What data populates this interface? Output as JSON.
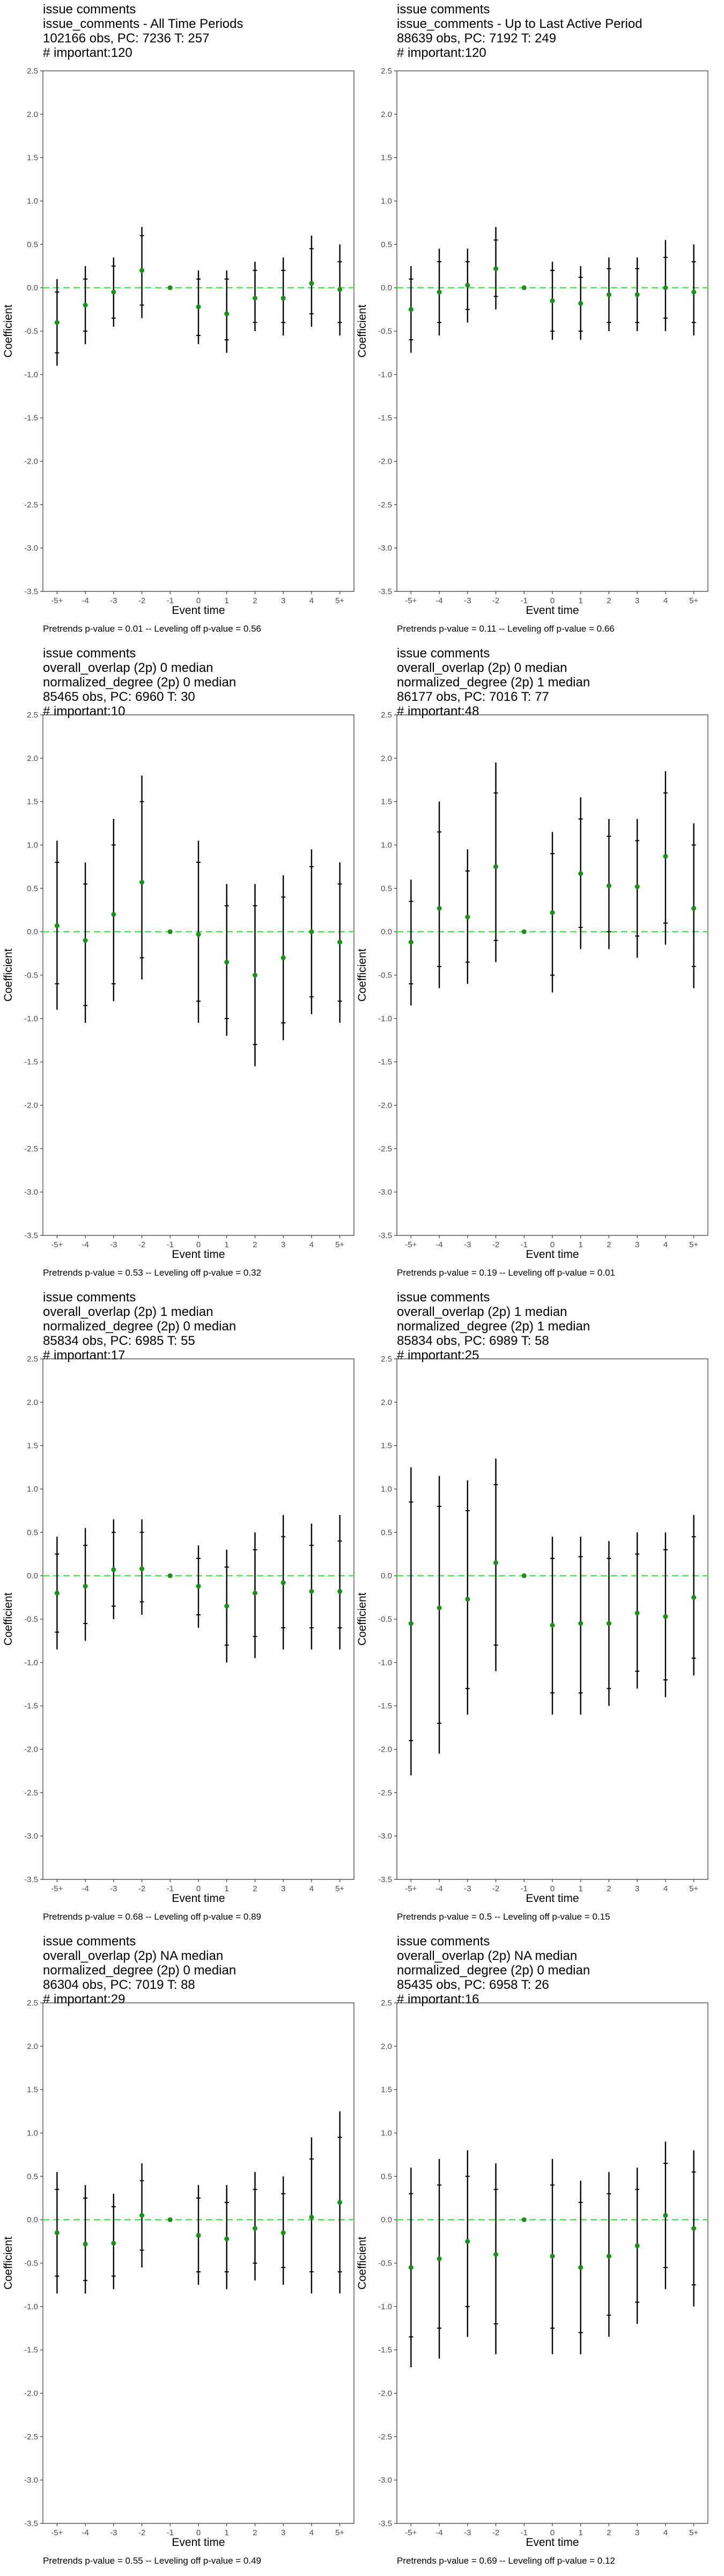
{
  "chart_data": [
    {
      "type": "scatter",
      "title_lines": [
        "issue comments",
        "issue_comments - All Time Periods",
        "102166 obs, PC: 7236 T: 257",
        "# important:120"
      ],
      "xlabel": "Event time",
      "ylabel": "Coefficient",
      "categories": [
        "-5+",
        "-4",
        "-3",
        "-2",
        "-1",
        "0",
        "1",
        "2",
        "3",
        "4",
        "5+"
      ],
      "ylim": [
        -3.5,
        2.5
      ],
      "yticks": [
        "2.5",
        "2.0",
        "1.5",
        "1.0",
        "0.5",
        "0.0",
        "-0.5",
        "-1.0",
        "-1.5",
        "-2.0",
        "-2.5",
        "-3.0",
        "-3.5"
      ],
      "estimate": [
        -0.4,
        -0.2,
        -0.05,
        0.2,
        0.0,
        -0.22,
        -0.3,
        -0.12,
        -0.12,
        0.05,
        -0.02
      ],
      "ci_inner": [
        [
          -0.75,
          -0.05
        ],
        [
          -0.5,
          0.1
        ],
        [
          -0.35,
          0.25
        ],
        [
          -0.2,
          0.6
        ],
        [
          0.0,
          0.0
        ],
        [
          -0.55,
          0.1
        ],
        [
          -0.6,
          0.1
        ],
        [
          -0.4,
          0.2
        ],
        [
          -0.4,
          0.2
        ],
        [
          -0.3,
          0.45
        ],
        [
          -0.4,
          0.3
        ]
      ],
      "ci_outer": [
        [
          -0.9,
          0.1
        ],
        [
          -0.65,
          0.25
        ],
        [
          -0.45,
          0.35
        ],
        [
          -0.35,
          0.7
        ],
        [
          0.0,
          0.0
        ],
        [
          -0.65,
          0.2
        ],
        [
          -0.75,
          0.2
        ],
        [
          -0.5,
          0.3
        ],
        [
          -0.55,
          0.35
        ],
        [
          -0.45,
          0.6
        ],
        [
          -0.55,
          0.5
        ]
      ],
      "reference_line": 0,
      "grid": false,
      "footnote": "Pretrends p-value = 0.01 -- Leveling off p-value = 0.56"
    },
    {
      "type": "scatter",
      "title_lines": [
        "issue comments",
        "issue_comments - Up to Last Active Period",
        "88639 obs, PC: 7192 T: 249",
        "# important:120"
      ],
      "xlabel": "Event time",
      "ylabel": "Coefficient",
      "categories": [
        "-5+",
        "-4",
        "-3",
        "-2",
        "-1",
        "0",
        "1",
        "2",
        "3",
        "4",
        "5+"
      ],
      "ylim": [
        -3.5,
        2.5
      ],
      "yticks": [
        "2.5",
        "2.0",
        "1.5",
        "1.0",
        "0.5",
        "0.0",
        "-0.5",
        "-1.0",
        "-1.5",
        "-2.0",
        "-2.5",
        "-3.0",
        "-3.5"
      ],
      "estimate": [
        -0.25,
        -0.05,
        0.03,
        0.22,
        0.0,
        -0.15,
        -0.18,
        -0.08,
        -0.08,
        0.0,
        -0.05
      ],
      "ci_inner": [
        [
          -0.6,
          0.1
        ],
        [
          -0.4,
          0.3
        ],
        [
          -0.25,
          0.3
        ],
        [
          -0.1,
          0.55
        ],
        [
          0.0,
          0.0
        ],
        [
          -0.5,
          0.2
        ],
        [
          -0.5,
          0.12
        ],
        [
          -0.4,
          0.22
        ],
        [
          -0.4,
          0.22
        ],
        [
          -0.35,
          0.35
        ],
        [
          -0.4,
          0.3
        ]
      ],
      "ci_outer": [
        [
          -0.75,
          0.25
        ],
        [
          -0.55,
          0.45
        ],
        [
          -0.4,
          0.45
        ],
        [
          -0.25,
          0.7
        ],
        [
          0.0,
          0.0
        ],
        [
          -0.6,
          0.3
        ],
        [
          -0.6,
          0.25
        ],
        [
          -0.5,
          0.35
        ],
        [
          -0.5,
          0.35
        ],
        [
          -0.5,
          0.55
        ],
        [
          -0.55,
          0.5
        ]
      ],
      "reference_line": 0,
      "grid": false,
      "footnote": "Pretrends p-value = 0.11 -- Leveling off p-value = 0.66"
    },
    {
      "type": "scatter",
      "title_lines": [
        "issue comments",
        "overall_overlap (2p) 0 median",
        "normalized_degree (2p) 0 median",
        "85465 obs, PC: 6960 T: 30",
        "# important:10"
      ],
      "xlabel": "Event time",
      "ylabel": "Coefficient",
      "categories": [
        "-5+",
        "-4",
        "-3",
        "-2",
        "-1",
        "0",
        "1",
        "2",
        "3",
        "4",
        "5+"
      ],
      "ylim": [
        -3.5,
        2.5
      ],
      "yticks": [
        "2.5",
        "2.0",
        "1.5",
        "1.0",
        "0.5",
        "0.0",
        "-0.5",
        "-1.0",
        "-1.5",
        "-2.0",
        "-2.5",
        "-3.0",
        "-3.5"
      ],
      "estimate": [
        0.07,
        -0.1,
        0.2,
        0.57,
        0.0,
        -0.03,
        -0.35,
        -0.5,
        -0.3,
        0.0,
        -0.12
      ],
      "ci_inner": [
        [
          -0.6,
          0.8
        ],
        [
          -0.85,
          0.55
        ],
        [
          -0.6,
          1.0
        ],
        [
          -0.3,
          1.5
        ],
        [
          0.0,
          0.0
        ],
        [
          -0.8,
          0.8
        ],
        [
          -1.0,
          0.3
        ],
        [
          -1.3,
          0.3
        ],
        [
          -1.05,
          0.4
        ],
        [
          -0.75,
          0.75
        ],
        [
          -0.8,
          0.55
        ]
      ],
      "ci_outer": [
        [
          -0.9,
          1.05
        ],
        [
          -1.05,
          0.8
        ],
        [
          -0.8,
          1.3
        ],
        [
          -0.55,
          1.8
        ],
        [
          0.0,
          0.0
        ],
        [
          -1.05,
          1.05
        ],
        [
          -1.2,
          0.55
        ],
        [
          -1.55,
          0.55
        ],
        [
          -1.25,
          0.65
        ],
        [
          -0.95,
          0.95
        ],
        [
          -1.05,
          0.8
        ]
      ],
      "reference_line": 0,
      "grid": false,
      "footnote": "Pretrends p-value = 0.53 -- Leveling off p-value = 0.32"
    },
    {
      "type": "scatter",
      "title_lines": [
        "issue comments",
        "overall_overlap (2p) 0 median",
        "normalized_degree (2p) 1 median",
        "86177 obs, PC: 7016 T: 77",
        "# important:48"
      ],
      "xlabel": "Event time",
      "ylabel": "Coefficient",
      "categories": [
        "-5+",
        "-4",
        "-3",
        "-2",
        "-1",
        "0",
        "1",
        "2",
        "3",
        "4",
        "5+"
      ],
      "ylim": [
        -3.5,
        2.5
      ],
      "yticks": [
        "2.5",
        "2.0",
        "1.5",
        "1.0",
        "0.5",
        "0.0",
        "-0.5",
        "-1.0",
        "-1.5",
        "-2.0",
        "-2.5",
        "-3.0",
        "-3.5"
      ],
      "estimate": [
        -0.12,
        0.27,
        0.17,
        0.75,
        0.0,
        0.22,
        0.67,
        0.53,
        0.52,
        0.87,
        0.27
      ],
      "ci_inner": [
        [
          -0.6,
          0.35
        ],
        [
          -0.4,
          1.15
        ],
        [
          -0.35,
          0.7
        ],
        [
          -0.1,
          1.6
        ],
        [
          0.0,
          0.0
        ],
        [
          -0.5,
          0.9
        ],
        [
          0.05,
          1.3
        ],
        [
          0.0,
          1.1
        ],
        [
          -0.05,
          1.05
        ],
        [
          0.1,
          1.6
        ],
        [
          -0.4,
          1.0
        ]
      ],
      "ci_outer": [
        [
          -0.85,
          0.6
        ],
        [
          -0.65,
          1.5
        ],
        [
          -0.6,
          0.95
        ],
        [
          -0.35,
          1.95
        ],
        [
          0.0,
          0.0
        ],
        [
          -0.7,
          1.15
        ],
        [
          -0.2,
          1.55
        ],
        [
          -0.2,
          1.3
        ],
        [
          -0.3,
          1.3
        ],
        [
          -0.15,
          1.85
        ],
        [
          -0.65,
          1.25
        ]
      ],
      "reference_line": 0,
      "grid": false,
      "footnote": "Pretrends p-value = 0.19 -- Leveling off p-value = 0.01"
    },
    {
      "type": "scatter",
      "title_lines": [
        "issue comments",
        "overall_overlap (2p) 1 median",
        "normalized_degree (2p) 0 median",
        "85834 obs, PC: 6985 T: 55",
        "# important:17"
      ],
      "xlabel": "Event time",
      "ylabel": "Coefficient",
      "categories": [
        "-5+",
        "-4",
        "-3",
        "-2",
        "-1",
        "0",
        "1",
        "2",
        "3",
        "4",
        "5+"
      ],
      "ylim": [
        -3.5,
        2.5
      ],
      "yticks": [
        "2.5",
        "2.0",
        "1.5",
        "1.0",
        "0.5",
        "0.0",
        "-0.5",
        "-1.0",
        "-1.5",
        "-2.0",
        "-2.5",
        "-3.0",
        "-3.5"
      ],
      "estimate": [
        -0.2,
        -0.12,
        0.07,
        0.08,
        0.0,
        -0.12,
        -0.35,
        -0.2,
        -0.08,
        -0.18,
        -0.18
      ],
      "ci_inner": [
        [
          -0.65,
          0.25
        ],
        [
          -0.55,
          0.35
        ],
        [
          -0.35,
          0.5
        ],
        [
          -0.3,
          0.5
        ],
        [
          0.0,
          0.0
        ],
        [
          -0.45,
          0.2
        ],
        [
          -0.8,
          0.1
        ],
        [
          -0.7,
          0.3
        ],
        [
          -0.6,
          0.45
        ],
        [
          -0.6,
          0.35
        ],
        [
          -0.6,
          0.4
        ]
      ],
      "ci_outer": [
        [
          -0.85,
          0.45
        ],
        [
          -0.75,
          0.55
        ],
        [
          -0.5,
          0.65
        ],
        [
          -0.45,
          0.65
        ],
        [
          0.0,
          0.0
        ],
        [
          -0.6,
          0.35
        ],
        [
          -1.0,
          0.3
        ],
        [
          -0.95,
          0.5
        ],
        [
          -0.85,
          0.7
        ],
        [
          -0.85,
          0.6
        ],
        [
          -0.85,
          0.7
        ]
      ],
      "reference_line": 0,
      "grid": false,
      "footnote": "Pretrends p-value = 0.68 -- Leveling off p-value = 0.89"
    },
    {
      "type": "scatter",
      "title_lines": [
        "issue comments",
        "overall_overlap (2p) 1 median",
        "normalized_degree (2p) 1 median",
        "85834 obs, PC: 6989 T: 58",
        "# important:25"
      ],
      "xlabel": "Event time",
      "ylabel": "Coefficient",
      "categories": [
        "-5+",
        "-4",
        "-3",
        "-2",
        "-1",
        "0",
        "1",
        "2",
        "3",
        "4",
        "5+"
      ],
      "ylim": [
        -3.5,
        2.5
      ],
      "yticks": [
        "2.5",
        "2.0",
        "1.5",
        "1.0",
        "0.5",
        "0.0",
        "-0.5",
        "-1.0",
        "-1.5",
        "-2.0",
        "-2.5",
        "-3.0",
        "-3.5"
      ],
      "estimate": [
        -0.55,
        -0.37,
        -0.27,
        0.15,
        0.0,
        -0.57,
        -0.55,
        -0.55,
        -0.43,
        -0.47,
        -0.25
      ],
      "ci_inner": [
        [
          -1.9,
          0.85
        ],
        [
          -1.7,
          0.8
        ],
        [
          -1.3,
          0.75
        ],
        [
          -0.8,
          1.05
        ],
        [
          0.0,
          0.0
        ],
        [
          -1.35,
          0.2
        ],
        [
          -1.35,
          0.22
        ],
        [
          -1.3,
          0.2
        ],
        [
          -1.1,
          0.25
        ],
        [
          -1.2,
          0.3
        ],
        [
          -0.95,
          0.45
        ]
      ],
      "ci_outer": [
        [
          -2.3,
          1.25
        ],
        [
          -2.05,
          1.15
        ],
        [
          -1.6,
          1.1
        ],
        [
          -1.1,
          1.35
        ],
        [
          0.0,
          0.0
        ],
        [
          -1.6,
          0.45
        ],
        [
          -1.6,
          0.45
        ],
        [
          -1.5,
          0.4
        ],
        [
          -1.3,
          0.5
        ],
        [
          -1.4,
          0.5
        ],
        [
          -1.15,
          0.7
        ]
      ],
      "reference_line": 0,
      "grid": false,
      "footnote": "Pretrends p-value = 0.5 -- Leveling off p-value = 0.15"
    },
    {
      "type": "scatter",
      "title_lines": [
        "issue comments",
        "overall_overlap (2p) NA median",
        "normalized_degree (2p) 0 median",
        "86304 obs, PC: 7019 T: 88",
        "# important:29"
      ],
      "xlabel": "Event time",
      "ylabel": "Coefficient",
      "categories": [
        "-5+",
        "-4",
        "-3",
        "-2",
        "-1",
        "0",
        "1",
        "2",
        "3",
        "4",
        "5+"
      ],
      "ylim": [
        -3.5,
        2.5
      ],
      "yticks": [
        "2.5",
        "2.0",
        "1.5",
        "1.0",
        "0.5",
        "0.0",
        "-0.5",
        "-1.0",
        "-1.5",
        "-2.0",
        "-2.5",
        "-3.0",
        "-3.5"
      ],
      "estimate": [
        -0.15,
        -0.28,
        -0.27,
        0.05,
        0.0,
        -0.18,
        -0.22,
        -0.1,
        -0.15,
        0.03,
        0.2
      ],
      "ci_inner": [
        [
          -0.65,
          0.35
        ],
        [
          -0.7,
          0.25
        ],
        [
          -0.65,
          0.15
        ],
        [
          -0.35,
          0.45
        ],
        [
          0.0,
          0.0
        ],
        [
          -0.6,
          0.25
        ],
        [
          -0.6,
          0.2
        ],
        [
          -0.5,
          0.35
        ],
        [
          -0.55,
          0.3
        ],
        [
          -0.6,
          0.7
        ],
        [
          -0.6,
          0.95
        ]
      ],
      "ci_outer": [
        [
          -0.85,
          0.55
        ],
        [
          -0.85,
          0.4
        ],
        [
          -0.8,
          0.3
        ],
        [
          -0.55,
          0.65
        ],
        [
          0.0,
          0.0
        ],
        [
          -0.75,
          0.4
        ],
        [
          -0.8,
          0.4
        ],
        [
          -0.7,
          0.55
        ],
        [
          -0.75,
          0.5
        ],
        [
          -0.85,
          0.95
        ],
        [
          -0.85,
          1.25
        ]
      ],
      "reference_line": 0,
      "grid": false,
      "footnote": "Pretrends p-value = 0.55 -- Leveling off p-value = 0.49"
    },
    {
      "type": "scatter",
      "title_lines": [
        "issue comments",
        "overall_overlap (2p) NA median",
        "normalized_degree (2p) 0 median",
        "85435 obs, PC: 6958 T: 26",
        "# important:16"
      ],
      "xlabel": "Event time",
      "ylabel": "Coefficient",
      "categories": [
        "-5+",
        "-4",
        "-3",
        "-2",
        "-1",
        "0",
        "1",
        "2",
        "3",
        "4",
        "5+"
      ],
      "ylim": [
        -3.5,
        2.5
      ],
      "yticks": [
        "2.5",
        "2.0",
        "1.5",
        "1.0",
        "0.5",
        "0.0",
        "-0.5",
        "-1.0",
        "-1.5",
        "-2.0",
        "-2.5",
        "-3.0",
        "-3.5"
      ],
      "estimate": [
        -0.55,
        -0.45,
        -0.25,
        -0.4,
        0.0,
        -0.42,
        -0.55,
        -0.42,
        -0.3,
        0.05,
        -0.1
      ],
      "ci_inner": [
        [
          -1.35,
          0.3
        ],
        [
          -1.25,
          0.4
        ],
        [
          -1.0,
          0.5
        ],
        [
          -1.2,
          0.35
        ],
        [
          0.0,
          0.0
        ],
        [
          -1.25,
          0.4
        ],
        [
          -1.3,
          0.2
        ],
        [
          -1.1,
          0.3
        ],
        [
          -0.95,
          0.35
        ],
        [
          -0.55,
          0.65
        ],
        [
          -0.75,
          0.55
        ]
      ],
      "ci_outer": [
        [
          -1.7,
          0.6
        ],
        [
          -1.6,
          0.7
        ],
        [
          -1.35,
          0.8
        ],
        [
          -1.55,
          0.65
        ],
        [
          0.0,
          0.0
        ],
        [
          -1.55,
          0.7
        ],
        [
          -1.55,
          0.45
        ],
        [
          -1.35,
          0.55
        ],
        [
          -1.2,
          0.6
        ],
        [
          -0.8,
          0.9
        ],
        [
          -1.0,
          0.8
        ]
      ],
      "reference_line": 0,
      "grid": false,
      "footnote": "Pretrends p-value = 0.69 -- Leveling off p-value = 0.12"
    }
  ],
  "colors": {
    "estimate_point": "#1a8f1a",
    "ci_line": "#000000",
    "reference_line": "#44ee44",
    "axis": "#333333",
    "tick_text": "#4d4d4d"
  }
}
